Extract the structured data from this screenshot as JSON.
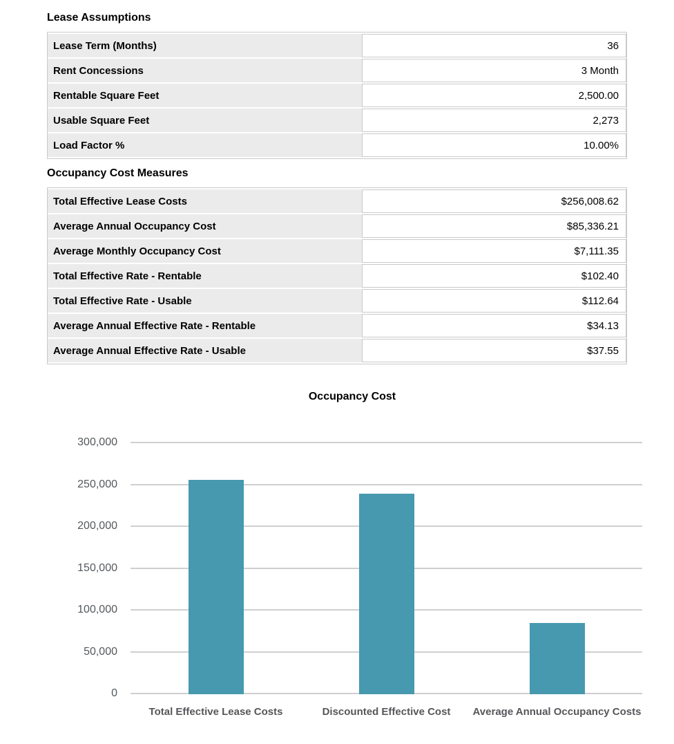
{
  "sections": [
    {
      "title": "Lease Assumptions",
      "rows": [
        {
          "label": "Lease Term (Months)",
          "value": "36"
        },
        {
          "label": "Rent Concessions",
          "value": "3 Month"
        },
        {
          "label": "Rentable Square Feet",
          "value": "2,500.00"
        },
        {
          "label": "Usable Square Feet",
          "value": "2,273"
        },
        {
          "label": "Load Factor %",
          "value": "10.00%"
        }
      ]
    },
    {
      "title": "Occupancy Cost Measures",
      "rows": [
        {
          "label": "Total Effective Lease Costs",
          "value": "$256,008.62"
        },
        {
          "label": "Average Annual Occupancy Cost",
          "value": "$85,336.21"
        },
        {
          "label": "Average Monthly Occupancy Cost",
          "value": "$7,111.35"
        },
        {
          "label": "Total Effective Rate - Rentable",
          "value": "$102.40"
        },
        {
          "label": "Total Effective Rate - Usable",
          "value": "$112.64"
        },
        {
          "label": "Average Annual Effective Rate - Rentable",
          "value": "$34.13"
        },
        {
          "label": "Average Annual Effective Rate - Usable",
          "value": "$37.55"
        }
      ]
    }
  ],
  "chart_data": {
    "type": "bar",
    "title": "Occupancy Cost",
    "categories": [
      "Total Effective Lease Costs",
      "Discounted Effective Cost",
      "Average Annual Occupancy Costs"
    ],
    "values": [
      256008.62,
      239500,
      85336.21
    ],
    "xlabel": "",
    "ylabel": "",
    "ylim": [
      0,
      300000
    ],
    "ytick_interval": 50000,
    "ytick_labels": [
      "0",
      "50,000",
      "100,000",
      "150,000",
      "200,000",
      "250,000",
      "300,000"
    ],
    "grid": true,
    "legend_position": "none",
    "bar_color": "#4699ae"
  },
  "colors": {
    "label_cell_bg": "#ebebeb",
    "table_border": "#c9c9c9",
    "grid_line": "#cfcfcf",
    "axis_text": "#55575a",
    "bar": "#4699ae"
  }
}
